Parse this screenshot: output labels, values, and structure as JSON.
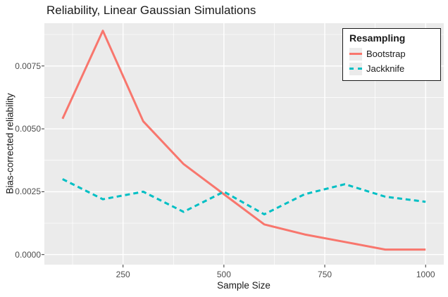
{
  "chart_data": {
    "type": "line",
    "title": "Reliability, Linear Gaussian Simulations",
    "xlabel": "Sample Size",
    "ylabel": "Bias-corrected reliability",
    "legend_title": "Resampling",
    "legend_position": "top-right-inside",
    "x": [
      100,
      200,
      300,
      400,
      500,
      600,
      700,
      800,
      900,
      1000
    ],
    "series": [
      {
        "name": "Bootstrap",
        "color": "#F8766D",
        "dash": "solid",
        "values": [
          0.0054,
          0.0089,
          0.0053,
          0.0036,
          0.0024,
          0.0012,
          0.0008,
          0.0005,
          0.0002,
          0.0002
        ]
      },
      {
        "name": "Jackknife",
        "color": "#00BFC4",
        "dash": "dashed",
        "values": [
          0.003,
          0.0022,
          0.0025,
          0.0017,
          0.0025,
          0.0016,
          0.0024,
          0.0028,
          0.0023,
          0.0021
        ]
      }
    ],
    "x_ticks": [
      250,
      500,
      750,
      1000
    ],
    "x_tick_labels": [
      "250",
      "500",
      "750",
      "1000"
    ],
    "x_minor_ticks": [
      125,
      375,
      625,
      875
    ],
    "y_ticks": [
      0.0,
      0.0025,
      0.005,
      0.0075
    ],
    "y_tick_labels": [
      "0.0000",
      "0.0025",
      "0.0050",
      "0.0075"
    ],
    "y_minor_ticks": [
      0.00125,
      0.00375,
      0.00625,
      0.00875
    ],
    "xlim": [
      55,
      1045
    ],
    "ylim": [
      -0.0004,
      0.0092
    ],
    "grid": "on",
    "style": {
      "panel_bg": "#EBEBEB",
      "grid_color": "#FFFFFF",
      "tick_mark_color": "#333333",
      "tick_label_color": "#4D4D4D",
      "legend_key_bg": "#EBEBEB"
    }
  }
}
